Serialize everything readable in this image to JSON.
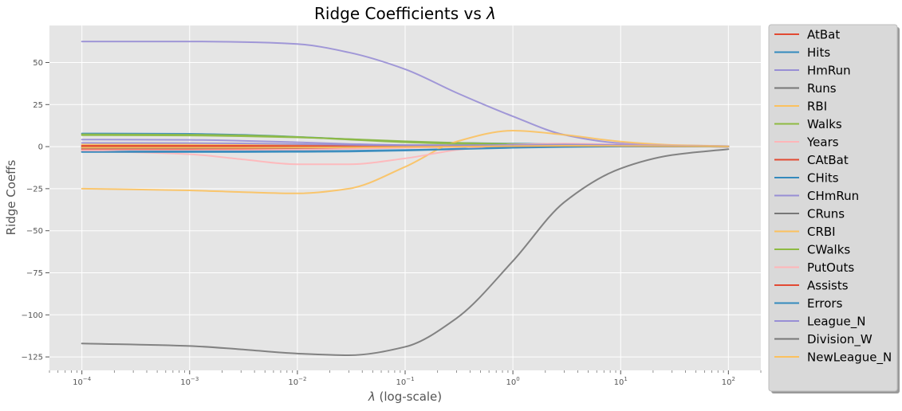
{
  "chart_data": {
    "type": "line",
    "title_text": "Ridge Coefficients vs ",
    "title_symbol": "λ",
    "xlabel_symbol": "λ",
    "xlabel_text": " (log-scale)",
    "ylabel": "Ridge Coeffs",
    "x_scale": "log",
    "xlim": [
      5e-05,
      200
    ],
    "ylim": [
      -133,
      72
    ],
    "x_tick_values": [
      0.0001,
      0.001,
      0.01,
      0.1,
      1,
      10,
      100
    ],
    "x_tick_base": "10",
    "x_tick_exponents": [
      "−4",
      "−3",
      "−2",
      "−1",
      "0",
      "1",
      "2"
    ],
    "y_ticks": [
      50,
      25,
      0,
      -25,
      -50,
      -75,
      -100,
      -125
    ],
    "y_tick_labels": [
      "50",
      "25",
      "0",
      "−25",
      "−50",
      "−75",
      "−100",
      "−125"
    ],
    "grid": true,
    "legend_position": "outside-right",
    "x_sample": [
      0.0001,
      0.001,
      0.003,
      0.01,
      0.03,
      0.1,
      0.3,
      1,
      3,
      10,
      30,
      100
    ],
    "series": [
      {
        "name": "AtBat",
        "color": "#E24A33",
        "values": [
          -1.5,
          -1.5,
          -1.4,
          -1.2,
          -0.9,
          -0.5,
          -0.1,
          0.4,
          0.6,
          0.5,
          0.3,
          0.1
        ]
      },
      {
        "name": "Hits",
        "color": "#348ABD",
        "values": [
          7.8,
          7.6,
          7.0,
          5.8,
          4.4,
          3.0,
          2.2,
          1.8,
          1.5,
          1.0,
          0.5,
          0.2
        ]
      },
      {
        "name": "HmRun",
        "color": "#988ED5",
        "values": [
          62.5,
          62.5,
          62.2,
          61.0,
          56.0,
          46.0,
          32.0,
          18.0,
          7.0,
          2.0,
          0.8,
          0.3
        ]
      },
      {
        "name": "Runs",
        "color": "#777777",
        "values": [
          -0.8,
          -0.8,
          -0.7,
          -0.6,
          -0.4,
          -0.1,
          0.2,
          0.5,
          0.6,
          0.5,
          0.3,
          0.1
        ]
      },
      {
        "name": "RBI",
        "color": "#FBC15E",
        "values": [
          1.2,
          1.2,
          1.1,
          1.0,
          0.9,
          0.8,
          0.8,
          0.9,
          0.9,
          0.7,
          0.4,
          0.2
        ]
      },
      {
        "name": "Walks",
        "color": "#8EBA42",
        "values": [
          6.8,
          6.6,
          6.2,
          5.5,
          4.5,
          3.2,
          2.2,
          1.6,
          1.3,
          0.9,
          0.5,
          0.2
        ]
      },
      {
        "name": "Years",
        "color": "#FFB5B8",
        "values": [
          -2.2,
          -2.2,
          -2.1,
          -1.8,
          -1.3,
          -0.7,
          -0.1,
          0.6,
          0.9,
          0.8,
          0.5,
          0.2
        ]
      },
      {
        "name": "CAtBat",
        "color": "#E24A33",
        "values": [
          0.5,
          0.5,
          0.5,
          0.4,
          0.4,
          0.3,
          0.3,
          0.3,
          0.3,
          0.2,
          0.1,
          0.0
        ]
      },
      {
        "name": "CHits",
        "color": "#348ABD",
        "values": [
          -2.8,
          -2.8,
          -2.8,
          -2.7,
          -2.5,
          -2.0,
          -1.3,
          -0.5,
          0.0,
          0.2,
          0.2,
          0.1
        ]
      },
      {
        "name": "CHmRun",
        "color": "#988ED5",
        "values": [
          4.2,
          4.0,
          3.5,
          2.6,
          1.6,
          0.9,
          0.8,
          1.0,
          1.2,
          1.0,
          0.5,
          0.2
        ]
      },
      {
        "name": "CRuns",
        "color": "#777777",
        "values": [
          -0.3,
          -0.3,
          -0.3,
          -0.2,
          -0.1,
          0.2,
          0.5,
          0.8,
          0.9,
          0.7,
          0.4,
          0.2
        ]
      },
      {
        "name": "CRBI",
        "color": "#FBC15E",
        "values": [
          -25.0,
          -26.0,
          -27.0,
          -27.8,
          -25.0,
          -12.0,
          3.0,
          9.5,
          7.0,
          3.0,
          1.0,
          0.3
        ]
      },
      {
        "name": "CWalks",
        "color": "#8EBA42",
        "values": [
          7.3,
          7.1,
          6.7,
          5.7,
          4.2,
          2.6,
          1.7,
          1.3,
          1.1,
          0.8,
          0.5,
          0.2
        ]
      },
      {
        "name": "PutOuts",
        "color": "#FFB5B8",
        "values": [
          -2.5,
          -4.5,
          -7.5,
          -10.5,
          -10.5,
          -7.0,
          -2.0,
          1.2,
          1.8,
          1.2,
          0.6,
          0.2
        ]
      },
      {
        "name": "Assists",
        "color": "#E24A33",
        "values": [
          0.3,
          0.3,
          0.3,
          0.2,
          0.2,
          0.2,
          0.2,
          0.2,
          0.2,
          0.2,
          0.1,
          0.0
        ]
      },
      {
        "name": "Errors",
        "color": "#348ABD",
        "values": [
          -3.2,
          -3.2,
          -3.2,
          -3.1,
          -2.9,
          -2.3,
          -1.5,
          -0.7,
          -0.2,
          0.1,
          0.1,
          0.0
        ]
      },
      {
        "name": "League_N",
        "color": "#988ED5",
        "values": [
          2.2,
          2.1,
          1.9,
          1.5,
          1.1,
          0.8,
          0.8,
          1.0,
          1.2,
          1.0,
          0.5,
          0.2
        ]
      },
      {
        "name": "Division_W",
        "color": "#777777",
        "values": [
          -117.0,
          -118.5,
          -120.5,
          -123.0,
          -124.0,
          -119.0,
          -102.0,
          -68.0,
          -33.0,
          -13.0,
          -5.0,
          -1.5
        ]
      },
      {
        "name": "NewLeague_N",
        "color": "#FBC15E",
        "values": [
          -0.6,
          -0.6,
          -0.6,
          -0.5,
          -0.4,
          -0.2,
          0.0,
          0.3,
          0.5,
          0.4,
          0.3,
          0.1
        ]
      }
    ]
  }
}
